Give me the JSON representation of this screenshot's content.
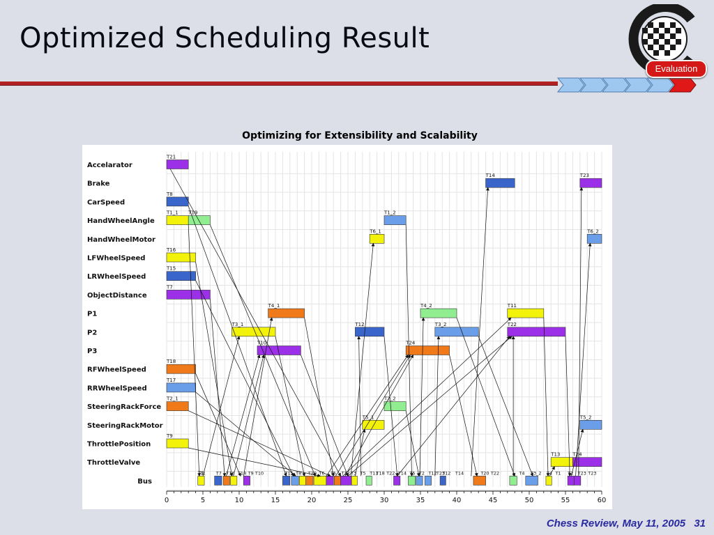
{
  "slide": {
    "title": "Optimized Scheduling Result",
    "footer_text": "Chess Review, May 11, 2005",
    "page_number": "31",
    "logo_badge": "Evaluation",
    "colors": {
      "rule": "#b22222",
      "background": "#dcdfe8",
      "footer": "#2a2aa0",
      "arrows": "#6aa8e8"
    }
  },
  "chart_data": {
    "type": "gantt",
    "title": "Optimizing for Extensibility and Scalability",
    "x_ticks": [
      0,
      5,
      10,
      15,
      20,
      25,
      30,
      35,
      40,
      45,
      50,
      55,
      60
    ],
    "xlim": [
      0,
      60
    ],
    "grid": true,
    "resources": [
      "Accelarator",
      "Brake",
      "CarSpeed",
      "HandWheelAngle",
      "HandWheelMotor",
      "LFWheelSpeed",
      "LRWheelSpeed",
      "ObjectDistance",
      "P1",
      "P2",
      "P3",
      "RFWheelSpeed",
      "RRWheelSpeed",
      "SteeringRackForce",
      "SteeringRackMotor",
      "ThrottlePosition",
      "ThrottleValve",
      "Bus"
    ],
    "tasks": [
      {
        "resource": "Accelarator",
        "label": "T21",
        "start": 0,
        "end": 3,
        "color": "#9b30e8"
      },
      {
        "resource": "Brake",
        "label": "T14",
        "start": 44,
        "end": 48,
        "color": "#3a66cc"
      },
      {
        "resource": "Brake",
        "label": "T23",
        "start": 57,
        "end": 60,
        "color": "#9b30e8"
      },
      {
        "resource": "CarSpeed",
        "label": "T8",
        "start": 0,
        "end": 3,
        "color": "#3a66cc"
      },
      {
        "resource": "HandWheelAngle",
        "label": "T1_1",
        "start": 0,
        "end": 3,
        "color": "#f2f20a"
      },
      {
        "resource": "HandWheelAngle",
        "label": "T19",
        "start": 3,
        "end": 6,
        "color": "#90ee90"
      },
      {
        "resource": "HandWheelAngle",
        "label": "T1_2",
        "start": 30,
        "end": 33,
        "color": "#6a9ee8"
      },
      {
        "resource": "HandWheelMotor",
        "label": "T6_1",
        "start": 28,
        "end": 30,
        "color": "#f2f20a"
      },
      {
        "resource": "HandWheelMotor",
        "label": "T6_2",
        "start": 58,
        "end": 60,
        "color": "#6a9ee8"
      },
      {
        "resource": "LFWheelSpeed",
        "label": "T16",
        "start": 0,
        "end": 4,
        "color": "#f2f20a"
      },
      {
        "resource": "LRWheelSpeed",
        "label": "T15",
        "start": 0,
        "end": 4,
        "color": "#3a66cc"
      },
      {
        "resource": "ObjectDistance",
        "label": "T7",
        "start": 0,
        "end": 6,
        "color": "#9b30e8"
      },
      {
        "resource": "P1",
        "label": "T4_1",
        "start": 14,
        "end": 19,
        "color": "#f07a1a"
      },
      {
        "resource": "P1",
        "label": "T4_2",
        "start": 35,
        "end": 40,
        "color": "#90ee90"
      },
      {
        "resource": "P1",
        "label": "T11",
        "start": 47,
        "end": 52,
        "color": "#f2f20a"
      },
      {
        "resource": "P2",
        "label": "T3_1",
        "start": 9,
        "end": 15,
        "color": "#f2f20a"
      },
      {
        "resource": "P2",
        "label": "T12",
        "start": 26,
        "end": 30,
        "color": "#3a66cc"
      },
      {
        "resource": "P2",
        "label": "T3_2",
        "start": 37,
        "end": 43,
        "color": "#6a9ee8"
      },
      {
        "resource": "P2",
        "label": "T22",
        "start": 47,
        "end": 55,
        "color": "#9b30e8"
      },
      {
        "resource": "P3",
        "label": "T10",
        "start": 12.5,
        "end": 18.5,
        "color": "#9b30e8"
      },
      {
        "resource": "P3",
        "label": "T24",
        "start": 33,
        "end": 39,
        "color": "#f07a1a"
      },
      {
        "resource": "RFWheelSpeed",
        "label": "T18",
        "start": 0,
        "end": 4,
        "color": "#f07a1a"
      },
      {
        "resource": "RRWheelSpeed",
        "label": "T17",
        "start": 0,
        "end": 4,
        "color": "#6a9ee8"
      },
      {
        "resource": "SteeringRackForce",
        "label": "T2_1",
        "start": 0,
        "end": 3,
        "color": "#f07a1a"
      },
      {
        "resource": "SteeringRackForce",
        "label": "T2_2",
        "start": 30,
        "end": 33,
        "color": "#90ee90"
      },
      {
        "resource": "SteeringRackMotor",
        "label": "T5_1",
        "start": 27,
        "end": 30,
        "color": "#f2f20a"
      },
      {
        "resource": "SteeringRackMotor",
        "label": "T5_2",
        "start": 57,
        "end": 60,
        "color": "#6a9ee8"
      },
      {
        "resource": "ThrottlePosition",
        "label": "T9",
        "start": 0,
        "end": 3,
        "color": "#f2f20a"
      },
      {
        "resource": "ThrottleValve",
        "label": "T13",
        "start": 53,
        "end": 56,
        "color": "#f2f20a"
      },
      {
        "resource": "ThrottleValve",
        "label": "T24",
        "start": 56,
        "end": 60,
        "color": "#9b30e8"
      },
      {
        "resource": "Bus",
        "label": "T1",
        "start": 4.3,
        "end": 5.2,
        "color": "#f2f20a"
      },
      {
        "resource": "Bus",
        "label": "",
        "start": 6.6,
        "end": 7.6,
        "color": "#3a66cc"
      },
      {
        "resource": "Bus",
        "label": "",
        "start": 7.8,
        "end": 8.7,
        "color": "#f07a1a"
      },
      {
        "resource": "Bus",
        "label": "",
        "start": 8.8,
        "end": 9.7,
        "color": "#f2f20a"
      },
      {
        "resource": "Bus",
        "label": "",
        "start": 10.6,
        "end": 11.5,
        "color": "#9b30e8"
      },
      {
        "resource": "Bus",
        "label": "",
        "start": 16,
        "end": 17,
        "color": "#3a66cc"
      },
      {
        "resource": "Bus",
        "label": "",
        "start": 17.2,
        "end": 18.2,
        "color": "#6a9ee8"
      },
      {
        "resource": "Bus",
        "label": "",
        "start": 18.3,
        "end": 19.2,
        "color": "#f2f20a"
      },
      {
        "resource": "Bus",
        "label": "",
        "start": 19.2,
        "end": 20.2,
        "color": "#f07a1a"
      },
      {
        "resource": "Bus",
        "label": "",
        "start": 20.3,
        "end": 22,
        "color": "#f2f20a"
      },
      {
        "resource": "Bus",
        "label": "",
        "start": 22,
        "end": 23,
        "color": "#9b30e8"
      },
      {
        "resource": "Bus",
        "label": "",
        "start": 23.1,
        "end": 24,
        "color": "#f07a1a"
      },
      {
        "resource": "Bus",
        "label": "",
        "start": 24,
        "end": 25.5,
        "color": "#9b30e8"
      },
      {
        "resource": "Bus",
        "label": "",
        "start": 25.5,
        "end": 26.3,
        "color": "#f2f20a"
      },
      {
        "resource": "Bus",
        "label": "",
        "start": 27.5,
        "end": 28.3,
        "color": "#90ee90"
      },
      {
        "resource": "Bus",
        "label": "",
        "start": 31.3,
        "end": 32.2,
        "color": "#9b30e8"
      },
      {
        "resource": "Bus",
        "label": "",
        "start": 33.3,
        "end": 34.3,
        "color": "#90ee90"
      },
      {
        "resource": "Bus",
        "label": "",
        "start": 34.4,
        "end": 35.3,
        "color": "#6a9ee8"
      },
      {
        "resource": "Bus",
        "label": "",
        "start": 35.6,
        "end": 36.5,
        "color": "#6a9ee8"
      },
      {
        "resource": "Bus",
        "label": "",
        "start": 37.7,
        "end": 38.5,
        "color": "#3a66cc"
      },
      {
        "resource": "Bus",
        "label": "",
        "start": 42.3,
        "end": 44,
        "color": "#f07a1a"
      },
      {
        "resource": "Bus",
        "label": "",
        "start": 47.3,
        "end": 48.3,
        "color": "#90ee90"
      },
      {
        "resource": "Bus",
        "label": "",
        "start": 49.5,
        "end": 51.2,
        "color": "#6a9ee8"
      },
      {
        "resource": "Bus",
        "label": "",
        "start": 52.3,
        "end": 53.1,
        "color": "#f2f20a"
      },
      {
        "resource": "Bus",
        "label": "",
        "start": 55.3,
        "end": 56.2,
        "color": "#9b30e8"
      },
      {
        "resource": "Bus",
        "label": "",
        "start": 56.2,
        "end": 57.1,
        "color": "#9b30e8"
      }
    ],
    "bus_labels": [
      {
        "x": 4.6,
        "text": "T1"
      },
      {
        "x": 6.8,
        "text": "T7"
      },
      {
        "x": 8.2,
        "text": "T16"
      },
      {
        "x": 9.8,
        "text": "T18"
      },
      {
        "x": 11.2,
        "text": "T9"
      },
      {
        "x": 12.2,
        "text": "T10"
      },
      {
        "x": 16.3,
        "text": "T15"
      },
      {
        "x": 17.8,
        "text": "T8"
      },
      {
        "x": 19.5,
        "text": "T20"
      },
      {
        "x": 21,
        "text": "T6"
      },
      {
        "x": 22.6,
        "text": "T5"
      },
      {
        "x": 24.1,
        "text": "T12"
      },
      {
        "x": 25.4,
        "text": "T3"
      },
      {
        "x": 26.7,
        "text": "T5"
      },
      {
        "x": 28,
        "text": "T11"
      },
      {
        "x": 28.9,
        "text": "T18"
      },
      {
        "x": 30.3,
        "text": "T22"
      },
      {
        "x": 31.9,
        "text": "T14"
      },
      {
        "x": 33.5,
        "text": "T5"
      },
      {
        "x": 34.8,
        "text": "T2"
      },
      {
        "x": 36.1,
        "text": "T12"
      },
      {
        "x": 37.2,
        "text": "T23"
      },
      {
        "x": 38,
        "text": "T12"
      },
      {
        "x": 39.8,
        "text": "T14"
      },
      {
        "x": 43.3,
        "text": "T20"
      },
      {
        "x": 44.7,
        "text": "T22"
      },
      {
        "x": 48.6,
        "text": "T4"
      },
      {
        "x": 50.2,
        "text": "T3_2"
      },
      {
        "x": 52.4,
        "text": "T4"
      },
      {
        "x": 53.6,
        "text": "T1"
      },
      {
        "x": 55.3,
        "text": "T2"
      },
      {
        "x": 56.7,
        "text": "T23"
      },
      {
        "x": 58.1,
        "text": "T23"
      }
    ],
    "dependencies": [
      {
        "from": [
          "Accelarator",
          0.5
        ],
        "to": [
          "Bus",
          24.0
        ]
      },
      {
        "from": [
          "CarSpeed",
          3.0
        ],
        "to": [
          "Bus",
          16.5
        ]
      },
      {
        "from": [
          "HandWheelAngle",
          3.0
        ],
        "to": [
          "Bus",
          4.5
        ]
      },
      {
        "from": [
          "HandWheelAngle",
          6.0
        ],
        "to": [
          "Bus",
          20.5
        ]
      },
      {
        "from": [
          "LFWheelSpeed",
          4.0
        ],
        "to": [
          "Bus",
          9.0
        ]
      },
      {
        "from": [
          "LRWheelSpeed",
          4.0
        ],
        "to": [
          "Bus",
          17.5
        ]
      },
      {
        "from": [
          "ObjectDistance",
          6.0
        ],
        "to": [
          "Bus",
          8.0
        ]
      },
      {
        "from": [
          "RFWheelSpeed",
          4.0
        ],
        "to": [
          "Bus",
          10.2
        ]
      },
      {
        "from": [
          "RRWheelSpeed",
          4.0
        ],
        "to": [
          "Bus",
          17.8
        ]
      },
      {
        "from": [
          "SteeringRackForce",
          3.0
        ],
        "to": [
          "Bus",
          22.6
        ]
      },
      {
        "from": [
          "ThrottlePosition",
          3.0
        ],
        "to": [
          "Bus",
          21.2
        ]
      },
      {
        "from": [
          "Bus",
          5.0
        ],
        "to": [
          "P2",
          10.0
        ]
      },
      {
        "from": [
          "Bus",
          8.2
        ],
        "to": [
          "P3",
          12.8
        ]
      },
      {
        "from": [
          "Bus",
          9.2
        ],
        "to": [
          "P3",
          13.4
        ]
      },
      {
        "from": [
          "Bus",
          10.6
        ],
        "to": [
          "P1",
          14.5
        ]
      },
      {
        "from": [
          "P2",
          15.0
        ],
        "to": [
          "Bus",
          19.0
        ]
      },
      {
        "from": [
          "P1",
          19.0
        ],
        "to": [
          "Bus",
          23.0
        ]
      },
      {
        "from": [
          "P3",
          18.5
        ],
        "to": [
          "Bus",
          25.0
        ]
      },
      {
        "from": [
          "Bus",
          25.4
        ],
        "to": [
          "HandWheelMotor",
          28.5
        ]
      },
      {
        "from": [
          "Bus",
          26.0
        ],
        "to": [
          "SteeringRackMotor",
          27.3
        ]
      },
      {
        "from": [
          "Bus",
          26.8
        ],
        "to": [
          "P2",
          26.5
        ]
      },
      {
        "from": [
          "Bus",
          22.0
        ],
        "to": [
          "P3",
          33.3
        ]
      },
      {
        "from": [
          "Bus",
          23.3
        ],
        "to": [
          "P3",
          33.6
        ]
      },
      {
        "from": [
          "Bus",
          24.6
        ],
        "to": [
          "P3",
          34.0
        ]
      },
      {
        "from": [
          "P2",
          30.0
        ],
        "to": [
          "Bus",
          31.8
        ]
      },
      {
        "from": [
          "HandWheelAngle",
          33.0
        ],
        "to": [
          "Bus",
          33.8
        ]
      },
      {
        "from": [
          "SteeringRackForce",
          33.0
        ],
        "to": [
          "Bus",
          34.8
        ]
      },
      {
        "from": [
          "Bus",
          34.9
        ],
        "to": [
          "P1",
          35.4
        ]
      },
      {
        "from": [
          "Bus",
          37.0
        ],
        "to": [
          "P2",
          37.5
        ]
      },
      {
        "from": [
          "P3",
          39.0
        ],
        "to": [
          "Bus",
          42.8
        ]
      },
      {
        "from": [
          "Bus",
          42.0
        ],
        "to": [
          "Brake",
          44.3
        ]
      },
      {
        "from": [
          "P1",
          40.0
        ],
        "to": [
          "Bus",
          48.0
        ]
      },
      {
        "from": [
          "P2",
          43.0
        ],
        "to": [
          "Bus",
          50.5
        ]
      },
      {
        "from": [
          "Bus",
          24.3
        ],
        "to": [
          "P1",
          47.5
        ]
      },
      {
        "from": [
          "Bus",
          25.0
        ],
        "to": [
          "P2",
          47.6
        ]
      },
      {
        "from": [
          "Bus",
          31.8
        ],
        "to": [
          "P2",
          47.3
        ]
      },
      {
        "from": [
          "Bus",
          47.8
        ],
        "to": [
          "P2",
          47.8
        ]
      },
      {
        "from": [
          "P1",
          52.0
        ],
        "to": [
          "Bus",
          52.6
        ]
      },
      {
        "from": [
          "P2",
          55.0
        ],
        "to": [
          "Bus",
          55.6
        ]
      },
      {
        "from": [
          "Bus",
          52.8
        ],
        "to": [
          "ThrottleValve",
          53.5
        ]
      },
      {
        "from": [
          "Bus",
          55.8
        ],
        "to": [
          "SteeringRackMotor",
          57.4
        ]
      },
      {
        "from": [
          "Bus",
          56.4
        ],
        "to": [
          "HandWheelMotor",
          58.4
        ]
      },
      {
        "from": [
          "Bus",
          56.8
        ],
        "to": [
          "Brake",
          57.2
        ]
      }
    ]
  }
}
